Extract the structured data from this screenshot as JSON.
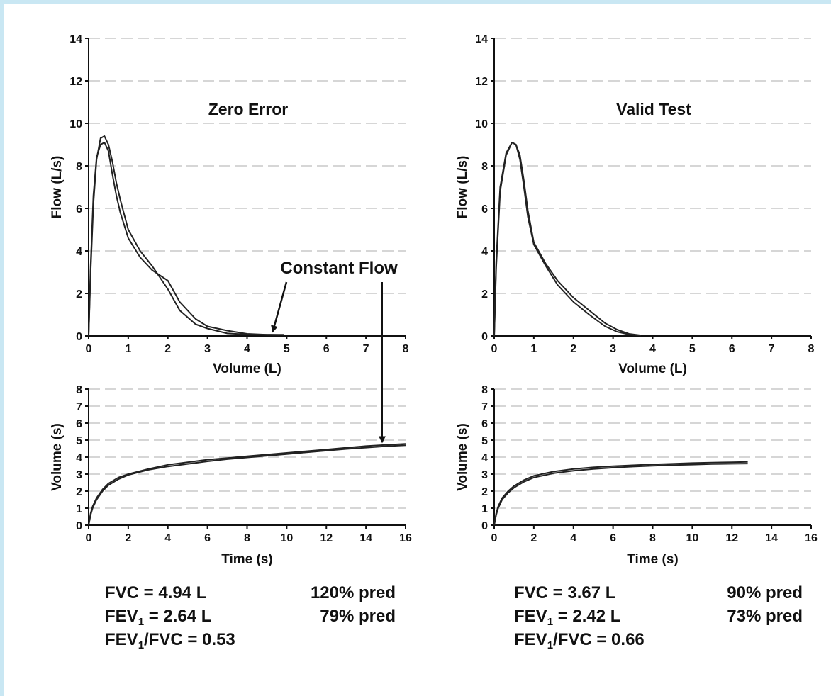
{
  "colors": {
    "frame": "#c9e7f3",
    "background": "#ffffff",
    "curve": "#222222",
    "grid": "#d6d6d6",
    "axis": "#111111"
  },
  "annotation": {
    "label": "Constant Flow"
  },
  "chart_data": [
    {
      "type": "line",
      "title": "Zero Error",
      "xlabel": "Volume (L)",
      "ylabel": "Flow (L/s)",
      "xlim": [
        0,
        8
      ],
      "ylim": [
        0,
        14
      ],
      "xticks": [
        0,
        1,
        2,
        3,
        4,
        5,
        6,
        7,
        8
      ],
      "yticks": [
        0,
        2,
        4,
        6,
        8,
        10,
        12,
        14
      ],
      "grid": "horizontal dashed",
      "series": [
        {
          "x": [
            0,
            0.05,
            0.12,
            0.2,
            0.3,
            0.4,
            0.5,
            0.6,
            0.7,
            0.8,
            1.0,
            1.3,
            1.6,
            2.0,
            2.3,
            2.7,
            3.0,
            3.5,
            4.0,
            4.5,
            4.94
          ],
          "y": [
            0,
            3.0,
            6.2,
            8.3,
            9.3,
            9.4,
            9.0,
            8.2,
            7.2,
            6.4,
            5.0,
            4.0,
            3.3,
            2.2,
            1.2,
            0.55,
            0.35,
            0.12,
            0.07,
            0.06,
            0.06
          ]
        },
        {
          "x": [
            0,
            0.05,
            0.12,
            0.2,
            0.3,
            0.4,
            0.5,
            0.6,
            0.7,
            0.8,
            1.0,
            1.3,
            1.6,
            2.0,
            2.3,
            2.7,
            3.0,
            3.5,
            4.0,
            4.5,
            4.8
          ],
          "y": [
            0,
            3.3,
            6.6,
            8.4,
            9.0,
            9.1,
            8.7,
            7.6,
            6.6,
            5.8,
            4.6,
            3.7,
            3.1,
            2.6,
            1.6,
            0.8,
            0.45,
            0.25,
            0.1,
            0.06,
            0.05
          ]
        }
      ]
    },
    {
      "type": "line",
      "title": "Valid Test",
      "xlabel": "Volume (L)",
      "ylabel": "Flow (L/s)",
      "xlim": [
        0,
        8
      ],
      "ylim": [
        0,
        14
      ],
      "xticks": [
        0,
        1,
        2,
        3,
        4,
        5,
        6,
        7,
        8
      ],
      "yticks": [
        0,
        2,
        4,
        6,
        8,
        10,
        12,
        14
      ],
      "grid": "horizontal dashed",
      "series": [
        {
          "x": [
            0,
            0.05,
            0.15,
            0.3,
            0.45,
            0.55,
            0.65,
            0.75,
            0.85,
            1.0,
            1.3,
            1.6,
            2.0,
            2.4,
            2.8,
            3.1,
            3.4,
            3.67
          ],
          "y": [
            0,
            3.5,
            7.0,
            8.6,
            9.1,
            9.0,
            8.3,
            7.0,
            5.6,
            4.3,
            3.3,
            2.4,
            1.6,
            1.0,
            0.45,
            0.2,
            0.07,
            0.03
          ]
        },
        {
          "x": [
            0,
            0.05,
            0.15,
            0.3,
            0.45,
            0.55,
            0.65,
            0.75,
            0.85,
            1.0,
            1.3,
            1.6,
            2.0,
            2.4,
            2.8,
            3.1,
            3.4,
            3.7
          ],
          "y": [
            0,
            3.2,
            6.8,
            8.5,
            9.1,
            9.0,
            8.5,
            7.3,
            5.9,
            4.4,
            3.4,
            2.6,
            1.8,
            1.2,
            0.6,
            0.3,
            0.1,
            0.03
          ]
        }
      ]
    },
    {
      "type": "line",
      "xlabel": "Time (s)",
      "ylabel": "Volume (s)",
      "xlim": [
        0,
        16
      ],
      "ylim": [
        0,
        8
      ],
      "xticks": [
        0,
        2,
        4,
        6,
        8,
        10,
        12,
        14,
        16
      ],
      "yticks": [
        0,
        1,
        2,
        3,
        4,
        5,
        6,
        7,
        8
      ],
      "grid": "horizontal dashed",
      "series": [
        {
          "x": [
            0,
            0.1,
            0.2,
            0.4,
            0.7,
            1.0,
            1.5,
            2,
            3,
            4,
            5,
            6,
            7,
            8,
            9,
            10,
            11,
            12,
            13,
            14,
            15,
            16
          ],
          "y": [
            0,
            0.7,
            1.1,
            1.6,
            2.1,
            2.45,
            2.8,
            3.0,
            3.3,
            3.55,
            3.7,
            3.85,
            3.95,
            4.05,
            4.15,
            4.25,
            4.35,
            4.45,
            4.55,
            4.65,
            4.72,
            4.78
          ]
        },
        {
          "x": [
            0,
            0.1,
            0.2,
            0.4,
            0.7,
            1.0,
            1.5,
            2,
            3,
            4,
            5,
            6,
            7,
            8,
            9,
            10,
            11,
            12,
            13,
            14,
            15,
            16
          ],
          "y": [
            0,
            0.6,
            1.0,
            1.5,
            2.0,
            2.35,
            2.7,
            2.95,
            3.25,
            3.45,
            3.6,
            3.75,
            3.88,
            3.98,
            4.08,
            4.18,
            4.28,
            4.38,
            4.48,
            4.56,
            4.64,
            4.7
          ]
        }
      ]
    },
    {
      "type": "line",
      "xlabel": "Time (s)",
      "ylabel": "Volume (s)",
      "xlim": [
        0,
        16
      ],
      "ylim": [
        0,
        8
      ],
      "xticks": [
        0,
        2,
        4,
        6,
        8,
        10,
        12,
        14,
        16
      ],
      "yticks": [
        0,
        1,
        2,
        3,
        4,
        5,
        6,
        7,
        8
      ],
      "grid": "horizontal dashed",
      "series": [
        {
          "x": [
            0,
            0.1,
            0.2,
            0.4,
            0.7,
            1.0,
            1.5,
            2,
            3,
            4,
            5,
            6,
            7,
            8,
            9,
            10,
            11,
            12,
            12.8
          ],
          "y": [
            0,
            0.7,
            1.1,
            1.6,
            2.0,
            2.3,
            2.65,
            2.9,
            3.15,
            3.3,
            3.4,
            3.47,
            3.52,
            3.57,
            3.61,
            3.65,
            3.68,
            3.7,
            3.72
          ]
        },
        {
          "x": [
            0,
            0.1,
            0.2,
            0.4,
            0.7,
            1.0,
            1.5,
            2,
            3,
            4,
            5,
            6,
            7,
            8,
            9,
            10,
            11,
            12,
            12.8
          ],
          "y": [
            0,
            0.6,
            1.0,
            1.5,
            1.9,
            2.2,
            2.55,
            2.8,
            3.05,
            3.2,
            3.3,
            3.38,
            3.44,
            3.49,
            3.53,
            3.56,
            3.59,
            3.61,
            3.62
          ]
        }
      ]
    }
  ],
  "results": {
    "left": {
      "fvc": "FVC = 4.94 L",
      "fvc_pred": "120% pred",
      "fev1_a": "FEV",
      "fev1_sub": "1",
      "fev1_b": " = 2.64 L",
      "fev1_pred": "79% pred",
      "ratio_a": "FEV",
      "ratio_sub": "1",
      "ratio_b": "/FVC = 0.53"
    },
    "right": {
      "fvc": "FVC = 3.67 L",
      "fvc_pred": "90% pred",
      "fev1_a": "FEV",
      "fev1_sub": "1",
      "fev1_b": " = 2.42 L",
      "fev1_pred": "73% pred",
      "ratio_a": "FEV",
      "ratio_sub": "1",
      "ratio_b": "/FVC = 0.66"
    }
  }
}
